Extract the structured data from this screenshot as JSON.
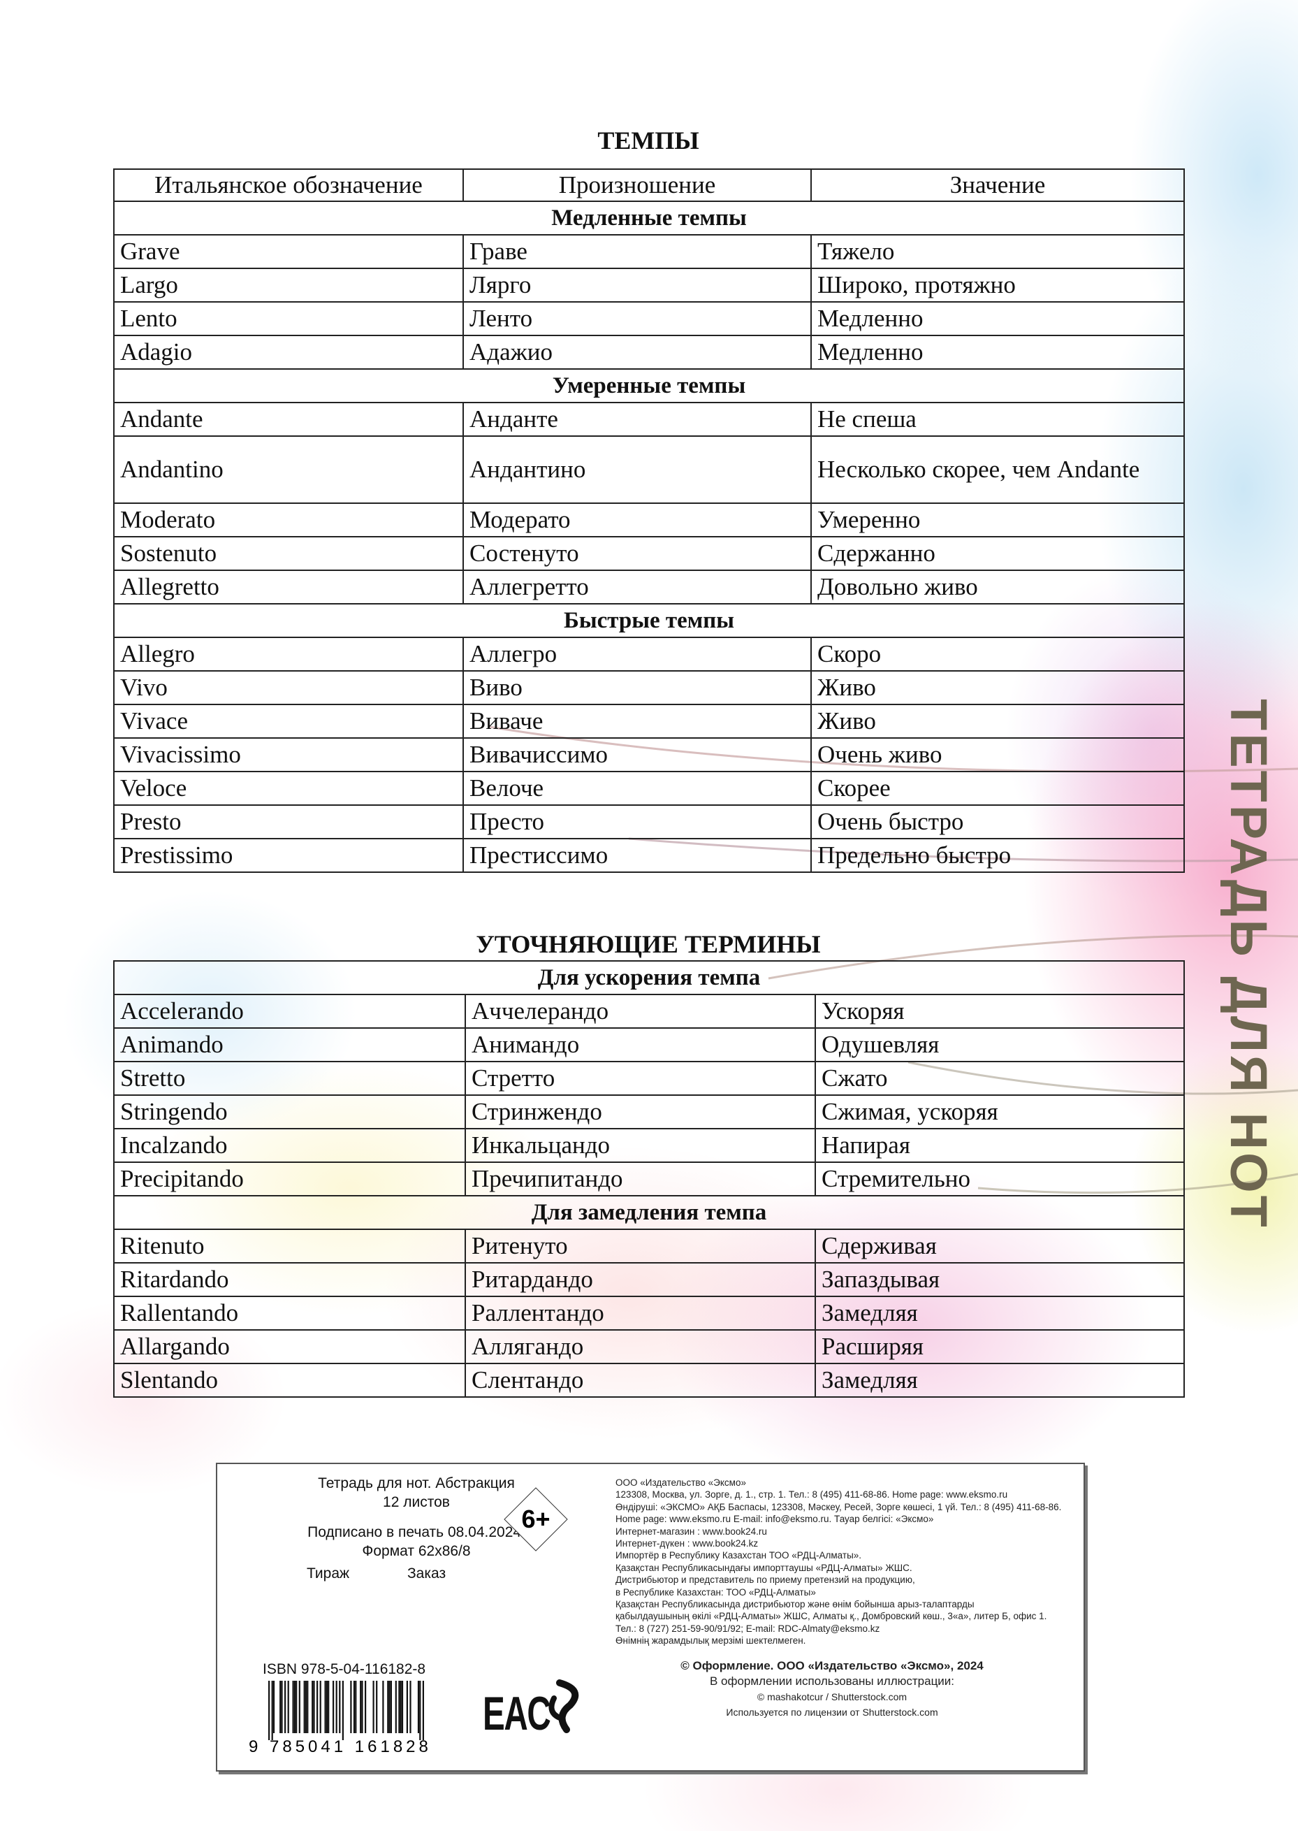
{
  "spine_text": "ТЕТРАДЬ ДЛЯ НОТ",
  "tempos": {
    "title": "ТЕМПЫ",
    "headers": [
      "Итальянское обозначение",
      "Произношение",
      "Значение"
    ],
    "sections": [
      {
        "name": "Медленные темпы",
        "rows": [
          [
            "Grave",
            "Граве",
            "Тяжело"
          ],
          [
            "Largo",
            "Лярго",
            "Широко, протяжно"
          ],
          [
            "Lento",
            "Ленто",
            "Медленно"
          ],
          [
            "Adagio",
            "Адажио",
            "Медленно"
          ]
        ]
      },
      {
        "name": "Умеренные темпы",
        "rows": [
          [
            "Andante",
            "Анданте",
            "Не спеша"
          ],
          [
            "Andantino",
            "Андантино",
            "Несколько скорее, чем Andante"
          ],
          [
            "Moderato",
            "Модерато",
            "Умеренно"
          ],
          [
            "Sostenuto",
            "Состенуто",
            "Сдержанно"
          ],
          [
            "Allegretto",
            "Аллегретто",
            "Довольно живо"
          ]
        ]
      },
      {
        "name": "Быстрые темпы",
        "rows": [
          [
            "Allegro",
            "Аллегро",
            "Скоро"
          ],
          [
            "Vivo",
            "Виво",
            "Живо"
          ],
          [
            "Vivace",
            "Виваче",
            "Живо"
          ],
          [
            "Vivacissimo",
            "Вивачиссимо",
            "Очень живо"
          ],
          [
            "Veloce",
            "Велоче",
            "Скорее"
          ],
          [
            "Presto",
            "Престо",
            "Очень быстро"
          ],
          [
            "Prestissimo",
            "Престиссимо",
            "Предельно быстро"
          ]
        ]
      }
    ]
  },
  "terms": {
    "title": "УТОЧНЯЮЩИЕ ТЕРМИНЫ",
    "sections": [
      {
        "name": "Для ускорения темпа",
        "rows": [
          [
            "Accelerando",
            "Аччелерандо",
            "Ускоряя"
          ],
          [
            "Animando",
            "Анимандо",
            "Одушевляя"
          ],
          [
            "Stretto",
            "Стретто",
            "Сжато"
          ],
          [
            "Stringendo",
            "Стринжендо",
            "Сжимая, ускоряя"
          ],
          [
            "Incalzando",
            "Инкальцандо",
            "Напирая"
          ],
          [
            "Precipitando",
            "Пречипитандо",
            "Стремительно"
          ]
        ]
      },
      {
        "name": "Для замедления темпа",
        "rows": [
          [
            "Ritenuto",
            "Ритенуто",
            "Сдерживая"
          ],
          [
            "Ritardando",
            "Ритардандо",
            "Запаздывая"
          ],
          [
            "Rallentando",
            "Раллентандо",
            "Замедляя"
          ],
          [
            "Allargando",
            "Аллягандо",
            "Расширяя"
          ],
          [
            "Slentando",
            "Слентандо",
            "Замедляя"
          ]
        ]
      }
    ]
  },
  "imprint": {
    "product_title": "Тетрадь для нот. Абстракция",
    "sheets": "12 листов",
    "signed": "Подписано в печать 08.04.2024.",
    "format": "Формат 62x86/8",
    "print_run": "Тираж",
    "order": "Заказ",
    "age_rating": "6+",
    "isbn": "ISBN 978-5-04-116182-8",
    "barcode_digits": "9 785041 161828 >",
    "eac_mark": "EAC",
    "publisher_lines": [
      "ООО «Издательство «Эксмо»",
      "123308, Москва, ул. Зорге, д. 1., стр. 1.  Тел.: 8 (495) 411-68-86. Home page: www.eksmo.ru",
      "Өндіруші: «ЭКСМО» АҚБ Баспасы, 123308, Мәскеу, Ресей, Зорге көшесі, 1 үй. Тел.: 8 (495) 411-68-86.",
      "Home page: www.eksmo.ru    E-mail: info@eksmo.ru.    Тауар белгісі: «Эксмо»",
      "Интернет-магазин : www.book24.ru",
      "Интернет-дүкен : www.book24.kz",
      "Импортёр в Республику Казахстан ТОО «РДЦ-Алматы».",
      "Қазақстан Республикасындағы импорттаушы «РДЦ-Алматы» ЖШС.",
      "Дистрибьютор и представитель по приему претензий на продукцию,",
      "в Республике Казахстан: ТОО «РДЦ-Алматы»",
      "Қазақстан Республикасында дистрибьютор және өнім бойынша арыз-талаптарды",
      "қабылдаушының өкілі «РДЦ-Алматы» ЖШС, Алматы қ.,  Домбровский көш.,  3«а», литер Б, офис 1.",
      "Тел.: 8 (727) 251-59-90/91/92;  E-mail: RDC-Almaty@eksmo.kz",
      "Өнімнің жарамдылық мерзімі шектелмеген."
    ],
    "credit_bold": "© Оформление. ООО «Издательство «Эксмо», 2024",
    "credit_illustrations": "В оформлении использованы иллюстрации:",
    "credit_author": "© mashakotcur / Shutterstock.com",
    "credit_license": "Используется по лицензии от Shutterstock.com"
  }
}
